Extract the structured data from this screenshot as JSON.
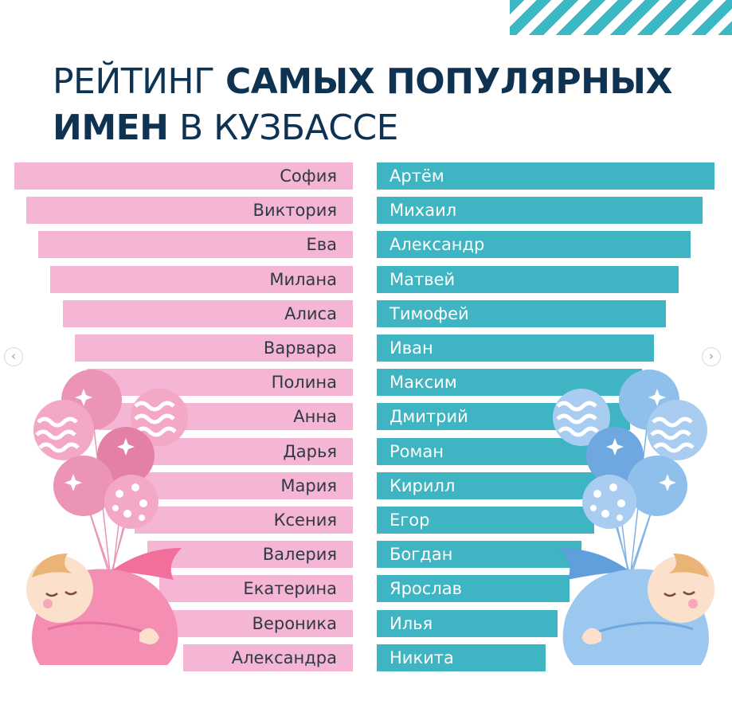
{
  "title": {
    "line1_regular": "РЕЙТИНГ",
    "line1_bold": "САМЫХ ПОПУЛЯРНЫХ",
    "line2_bold": "ИМЕН",
    "line2_regular": "В КУЗБАССЕ"
  },
  "girls": [
    "София",
    "Виктория",
    "Ева",
    "Милана",
    "Алиса",
    "Варвара",
    "Полина",
    "Анна",
    "Дарья",
    "Мария",
    "Ксения",
    "Валерия",
    "Екатерина",
    "Вероника",
    "Александра"
  ],
  "boys": [
    "Артём",
    "Михаил",
    "Александр",
    "Матвей",
    "Тимофей",
    "Иван",
    "Максим",
    "Дмитрий",
    "Роман",
    "Кирилл",
    "Егор",
    "Богдан",
    "Ярослав",
    "Илья",
    "Никита"
  ],
  "nav": {
    "prev": "‹",
    "next": "›"
  },
  "colors": {
    "girl_bar": "#f4b6d4",
    "boy_bar": "#3fb4c2",
    "title": "#0e3352",
    "accent_stripes": "#3ab8c4"
  },
  "icons": {
    "left_illustration": "baby-girl-balloons-icon",
    "right_illustration": "baby-boy-balloons-icon",
    "stripes": "diagonal-stripes-decoration"
  }
}
